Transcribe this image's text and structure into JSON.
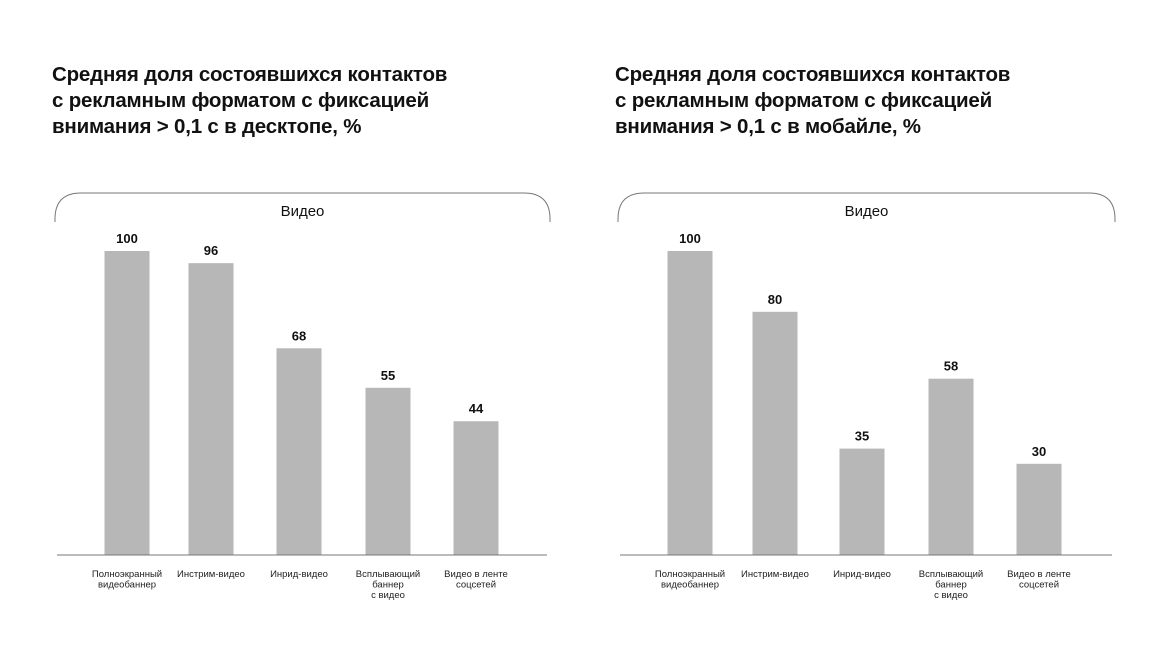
{
  "chart_data": [
    {
      "type": "bar",
      "title": "Средняя доля состоявшихся контактов\nс рекламным форматом с фиксацией\nвнимания > 0,1 с в десктопе, %",
      "group_label": "Видео",
      "categories": [
        "Полноэкранный\nвидеобаннер",
        "Инстрим-видео",
        "Инрид-видео",
        "Всплывающий\nбаннер\nс видео",
        "Видео в ленте\nсоцсетей"
      ],
      "values": [
        100,
        96,
        68,
        55,
        44
      ],
      "ylim": [
        0,
        100
      ],
      "grid": false,
      "bar_color": "#b7b7b7"
    },
    {
      "type": "bar",
      "title": "Средняя доля состоявшихся контактов\nс рекламным форматом с фиксацией\nвнимания > 0,1 с в мобайле, %",
      "group_label": "Видео",
      "categories": [
        "Полноэкранный\nвидеобаннер",
        "Инстрим-видео",
        "Инрид-видео",
        "Всплывающий\nбаннер\nс видео",
        "Видео в ленте\nсоцсетей"
      ],
      "values": [
        100,
        80,
        35,
        58,
        30
      ],
      "ylim": [
        0,
        100
      ],
      "grid": false,
      "bar_color": "#b7b7b7"
    }
  ]
}
